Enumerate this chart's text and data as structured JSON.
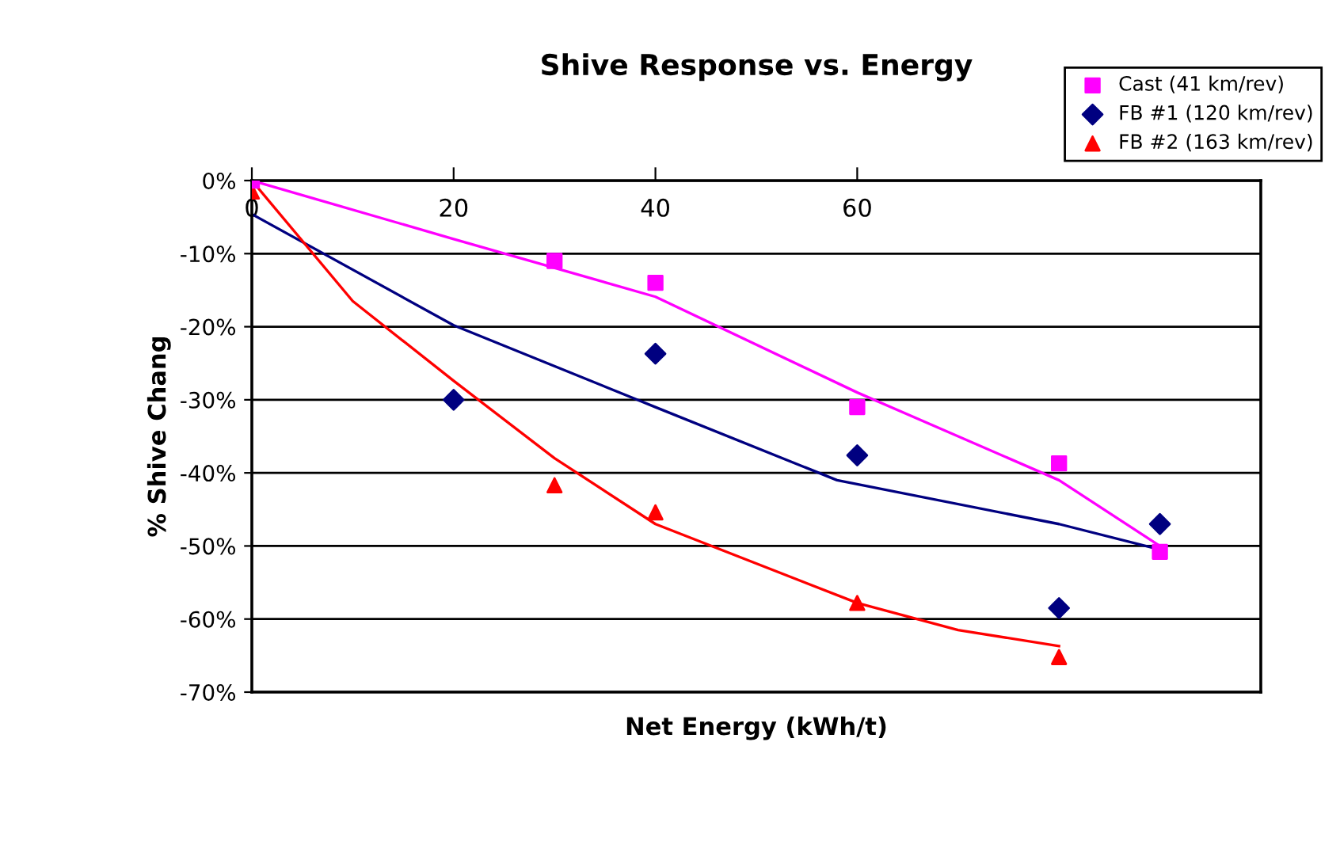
{
  "chart_data": {
    "type": "scatter",
    "title": "Shive Response vs. Energy",
    "xlabel": "Net Energy (kWh/t)",
    "ylabel": "% Shive Chang",
    "xlim": [
      0,
      100
    ],
    "xticks": [
      0,
      20,
      40,
      60
    ],
    "ylim": [
      -70,
      0
    ],
    "yticks": [
      {
        "value": 0,
        "label": "0%"
      },
      {
        "value": -10,
        "label": "-10%"
      },
      {
        "value": -20,
        "label": "-20%"
      },
      {
        "value": -30,
        "label": "-30%"
      },
      {
        "value": -40,
        "label": "-40%"
      },
      {
        "value": -50,
        "label": "-50%"
      },
      {
        "value": -60,
        "label": "-60%"
      },
      {
        "value": -70,
        "label": "-70%"
      }
    ],
    "grid": "y",
    "legend": "top right",
    "series": [
      {
        "name": "Cast (41 km/rev)",
        "color": "#ff00ff",
        "marker": "square",
        "x": [
          0,
          30,
          40,
          60,
          80,
          90
        ],
        "values": [
          0,
          -11,
          -14,
          -31,
          -38.7,
          -50.8
        ]
      },
      {
        "name": "FB #1 (120 km/rev)",
        "color": "#000080",
        "marker": "diamond",
        "x": [
          20,
          40,
          60,
          80,
          90
        ],
        "values": [
          -30,
          -23.7,
          -37.6,
          -58.5,
          -47
        ]
      },
      {
        "name": "FB #2 (163 km/rev)",
        "color": "#ff0000",
        "marker": "triangle",
        "x": [
          0,
          30,
          40,
          60,
          80
        ],
        "values": [
          -1.5,
          -41.7,
          -45.4,
          -57.8,
          -65.2
        ]
      },
      {
        "type": "line",
        "color": "#ff00ff",
        "marker": "none",
        "x": [
          0,
          20,
          40,
          60,
          80,
          90
        ],
        "values": [
          0,
          -8,
          -15.9,
          -29,
          -41,
          -50
        ]
      },
      {
        "type": "line",
        "color": "#000080",
        "marker": "none",
        "x": [
          0,
          20,
          40,
          58,
          80,
          90
        ],
        "values": [
          -4.6,
          -19.8,
          -31,
          -41,
          -47,
          -50.5
        ]
      },
      {
        "type": "line",
        "color": "#ff0000",
        "marker": "none",
        "x": [
          0,
          10,
          20,
          30,
          40,
          60,
          70,
          80
        ],
        "values": [
          0,
          -16.5,
          -27.4,
          -38,
          -47,
          -57.8,
          -61.5,
          -63.7
        ]
      }
    ]
  }
}
